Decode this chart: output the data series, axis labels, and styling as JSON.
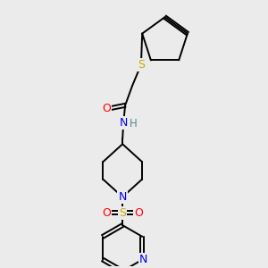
{
  "background_color": "#ebebeb",
  "bond_color": "#000000",
  "atom_colors": {
    "O": "#ff0000",
    "N": "#0000ee",
    "S_thio": "#ccaa00",
    "S_sulfonyl": "#ccaa00",
    "H": "#558888",
    "C": "#000000"
  },
  "figsize": [
    3.0,
    3.0
  ],
  "dpi": 100,
  "lw": 1.4
}
